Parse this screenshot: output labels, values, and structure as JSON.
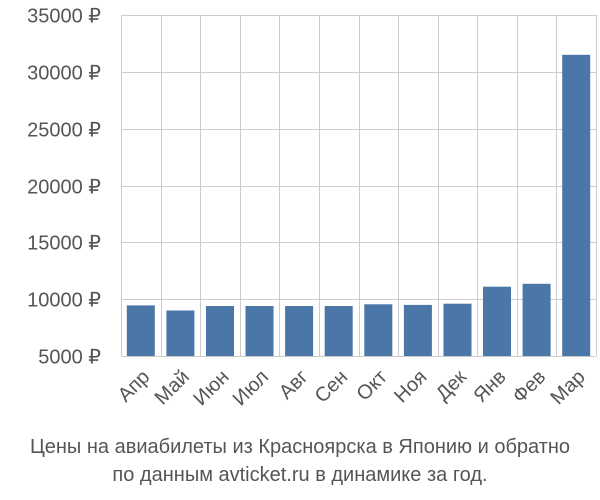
{
  "chart_data": {
    "type": "bar",
    "categories": [
      "Апр",
      "Май",
      "Июн",
      "Июл",
      "Авг",
      "Сен",
      "Окт",
      "Ноя",
      "Дек",
      "Янв",
      "Фев",
      "Мар"
    ],
    "values": [
      9450,
      9000,
      9400,
      9400,
      9400,
      9400,
      9550,
      9500,
      9600,
      11100,
      11350,
      31500
    ],
    "ylim": [
      5000,
      35000
    ],
    "yticks": [
      5000,
      10000,
      15000,
      20000,
      25000,
      30000,
      35000
    ],
    "ytick_labels": [
      "5000 ₽",
      "10000 ₽",
      "15000 ₽",
      "20000 ₽",
      "25000 ₽",
      "30000 ₽",
      "35000 ₽"
    ],
    "grid": true,
    "bar_color": "#4a76a8",
    "grid_color": "#cccccc",
    "tick_label_color": "#555555"
  },
  "caption": {
    "line1": "Цены на авиабилеты из Красноярска в Японию и обратно",
    "line2": "по данным avticket.ru в динамике за год."
  }
}
